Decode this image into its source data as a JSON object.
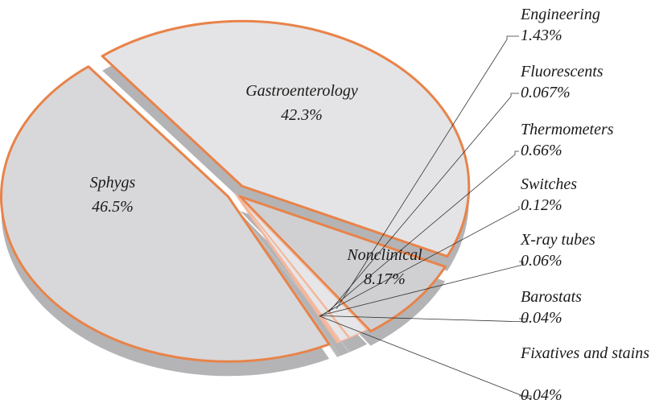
{
  "chart_data": {
    "type": "pie",
    "categories": [
      "Gastroenterology",
      "Nonclinical",
      "Engineering",
      "Fluorescents",
      "Thermometers",
      "Switches",
      "X-ray tubes",
      "Barostats",
      "Fixatives and stains",
      "Sphygs"
    ],
    "values": [
      42.3,
      8.17,
      1.43,
      0.067,
      0.66,
      0.12,
      0.06,
      0.04,
      0.04,
      46.5
    ],
    "value_labels": [
      "42.3%",
      "8.17%",
      "1.43%",
      "0.067%",
      "0.66%",
      "0.12%",
      "0.06%",
      "0.04%",
      "0.04%",
      "46.5%"
    ],
    "colors": [
      "#e4e4e6",
      "#d0d0d2",
      "#e6e6e8",
      "#e6e6e8",
      "#e6e6e8",
      "#e6e6e8",
      "#e6e6e8",
      "#e6e6e8",
      "#e6e6e8",
      "#d8d8da"
    ],
    "edge_color": "#e8834a"
  }
}
